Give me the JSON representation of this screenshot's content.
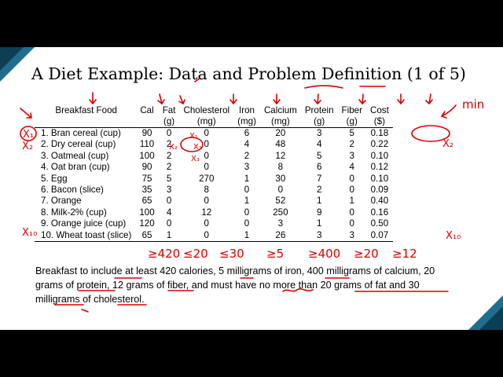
{
  "slide": {
    "title": "A Diet Example: Data and Problem Definition (1 of 5)",
    "table": {
      "headers": [
        {
          "line1": "Breakfast Food",
          "line2": ""
        },
        {
          "line1": "Cal",
          "line2": ""
        },
        {
          "line1": "Fat",
          "line2": "(g)"
        },
        {
          "line1": "Cholesterol",
          "line2": "(mg)"
        },
        {
          "line1": "Iron",
          "line2": "(mg)"
        },
        {
          "line1": "Calcium",
          "line2": "(mg)"
        },
        {
          "line1": "Protein",
          "line2": "(g)"
        },
        {
          "line1": "Fiber",
          "line2": "(g)"
        },
        {
          "line1": "Cost",
          "line2": "($)"
        }
      ],
      "rows": [
        [
          "1. Bran cereal (cup)",
          "90",
          "0",
          "0",
          "6",
          "20",
          "3",
          "5",
          "0.18"
        ],
        [
          "2. Dry cereal (cup)",
          "110",
          "2",
          "0",
          "4",
          "48",
          "4",
          "2",
          "0.22"
        ],
        [
          "3. Oatmeal (cup)",
          "100",
          "2",
          "0",
          "2",
          "12",
          "5",
          "3",
          "0.10"
        ],
        [
          "4. Oat bran (cup)",
          "90",
          "2",
          "0",
          "3",
          "8",
          "6",
          "4",
          "0.12"
        ],
        [
          "5. Egg",
          "75",
          "5",
          "270",
          "1",
          "30",
          "7",
          "0",
          "0.10"
        ],
        [
          "6. Bacon (slice)",
          "35",
          "3",
          "8",
          "0",
          "0",
          "2",
          "0",
          "0.09"
        ],
        [
          "7. Orange",
          "65",
          "0",
          "0",
          "1",
          "52",
          "1",
          "1",
          "0.40"
        ],
        [
          "8. Milk-2% (cup)",
          "100",
          "4",
          "12",
          "0",
          "250",
          "9",
          "0",
          "0.16"
        ],
        [
          "9. Orange juice (cup)",
          "120",
          "0",
          "0",
          "0",
          "3",
          "1",
          "0",
          "0.50"
        ],
        [
          "10. Wheat toast (slice)",
          "65",
          "1",
          "0",
          "1",
          "26",
          "3",
          "3",
          "0.07"
        ]
      ]
    },
    "paragraph": "Breakfast to include at least 420 calories, 5 milligrams of iron, 400 milligrams of calcium, 20 grams of protein, 12 grams of fiber, and must have no more than 20 grams of fat and 30 milligrams of cholesterol.",
    "annotations": {
      "min": "min",
      "x1": "X₁",
      "x2": "X₂",
      "x3": "X₃",
      "x10": "X₁₀",
      "c_cal": "≥420",
      "c_fat": "≤20",
      "c_chol": "≤30",
      "c_iron": "≥5",
      "c_calcium": "≥400",
      "c_protein": "≥20",
      "c_fiber": "≥12"
    },
    "colors": {
      "ink": "#d80000",
      "accent": "#1e6f8f",
      "accent_dark": "#0e3e55",
      "background": "#ffffff",
      "letterbox": "#000000"
    }
  }
}
